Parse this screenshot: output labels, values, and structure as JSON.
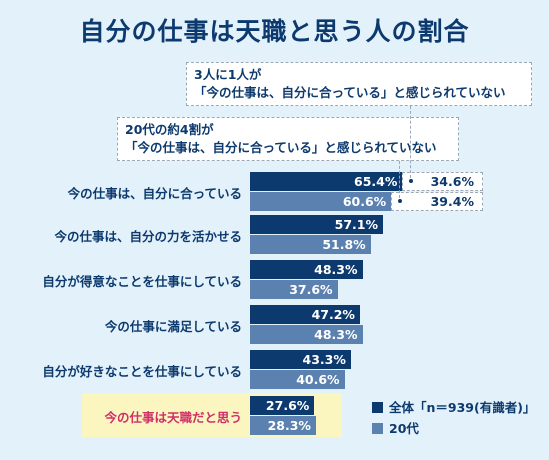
{
  "title": "自分の仕事は天職と思う人の割合",
  "callouts": [
    {
      "line1": "3人に1人が",
      "line2": "「今の仕事は、自分に合っている」と感じられていない"
    },
    {
      "line1": "20代の約4割が",
      "line2": "「今の仕事は、自分に合っている」と感じられていない"
    }
  ],
  "colors": {
    "all": "#0d3a6e",
    "twenties": "#5a81b0",
    "highlight_text": "#d0306a",
    "highlight_bg": "#fbf6c0"
  },
  "chart_data": {
    "type": "bar",
    "orientation": "horizontal",
    "categories": [
      "今の仕事は、自分に合っている",
      "今の仕事は、自分の力を活かせる",
      "自分が得意なことを仕事にしている",
      "今の仕事に満足している",
      "自分が好きなことを仕事にしている",
      "今の仕事は天職だと思う"
    ],
    "series": [
      {
        "name": "全体「n＝939(有識者)」",
        "values": [
          65.4,
          57.1,
          48.3,
          47.2,
          43.3,
          27.6
        ],
        "labels": [
          "65.4%",
          "57.1%",
          "48.3%",
          "47.2%",
          "43.3%",
          "27.6%"
        ]
      },
      {
        "name": "20代",
        "values": [
          60.6,
          51.8,
          37.6,
          48.3,
          40.6,
          28.3
        ],
        "labels": [
          "60.6%",
          "51.8%",
          "37.6%",
          "48.3%",
          "40.6%",
          "28.3%"
        ]
      }
    ],
    "remainder": {
      "category": "今の仕事は、自分に合っている",
      "values": [
        34.6,
        39.4
      ],
      "labels": [
        "34.6%",
        "39.4%"
      ]
    },
    "highlighted_category": "今の仕事は天職だと思う",
    "xlim": [
      0,
      100
    ],
    "legend_position": "bottom-right"
  }
}
